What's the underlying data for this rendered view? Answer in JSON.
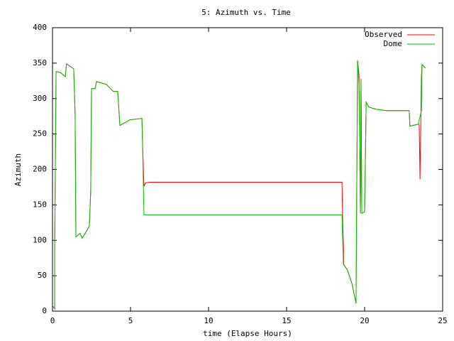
{
  "chart_data": {
    "type": "line",
    "title": "5: Azimuth vs. Time",
    "x_label": "time (Elapse Hours)",
    "y_label": "Azimuth",
    "xlim": [
      0,
      25
    ],
    "xticks": [
      0,
      5,
      10,
      15,
      20,
      25
    ],
    "ylim": [
      0,
      400
    ],
    "yticks": [
      0,
      50,
      100,
      150,
      200,
      250,
      300,
      350,
      400
    ],
    "grid": false,
    "legend": "top-right",
    "series": [
      {
        "name": "Observed",
        "color": "#ff0000",
        "x": [
          0,
          0.14,
          0.14,
          0.23,
          0.5,
          0.82,
          0.9,
          1.36,
          1.45,
          1.5,
          1.77,
          1.9,
          2.18,
          2.36,
          2.45,
          2.5,
          2.73,
          2.82,
          3.45,
          3.9,
          4.18,
          4.32,
          4.64,
          4.95,
          5.73,
          5.77,
          5.86,
          5.95,
          6.2,
          18.55,
          18.6,
          18.64,
          18.66,
          18.9,
          19.2,
          19.45,
          19.55,
          19.64,
          19.73,
          19.77,
          19.82,
          20,
          20.1,
          20.27,
          20.73,
          21.4,
          22.86,
          22.9,
          23.45,
          23.5,
          23.55,
          23.64,
          23.68,
          23.9
        ],
        "values": [
          8,
          3,
          88,
          338,
          337,
          331,
          349,
          342,
          278,
          105,
          110,
          103,
          113,
          120,
          170,
          314,
          314,
          324,
          320,
          310,
          310,
          262,
          266,
          270,
          272,
          238,
          176,
          181,
          182,
          182,
          120,
          95,
          66,
          58,
          38,
          11,
          354,
          333,
          138,
          328,
          138,
          140,
          295,
          288,
          285,
          283,
          283,
          261,
          264,
          262,
          186,
          330,
          348,
          343
        ]
      },
      {
        "name": "Dome",
        "color": "#00c000",
        "x": [
          0,
          0.14,
          0.14,
          0.23,
          0.5,
          0.82,
          0.9,
          1.36,
          1.45,
          1.5,
          1.77,
          1.9,
          2.18,
          2.36,
          2.45,
          2.5,
          2.73,
          2.82,
          3.45,
          3.9,
          4.18,
          4.32,
          4.64,
          4.95,
          5.73,
          5.77,
          5.86,
          18.55,
          18.64,
          18.9,
          19.2,
          19.45,
          19.55,
          19.64,
          19.73,
          19.77,
          19.82,
          20,
          20.1,
          20.27,
          20.73,
          21.4,
          22.86,
          22.9,
          23.45,
          23.5,
          23.64,
          23.68,
          23.9
        ],
        "values": [
          8,
          3,
          88,
          338,
          337,
          331,
          349,
          342,
          278,
          105,
          110,
          103,
          113,
          120,
          170,
          314,
          314,
          324,
          320,
          310,
          310,
          262,
          266,
          270,
          272,
          238,
          136,
          136,
          66,
          58,
          38,
          11,
          354,
          318,
          138,
          328,
          138,
          140,
          295,
          288,
          285,
          283,
          283,
          261,
          264,
          270,
          283,
          348,
          343
        ]
      }
    ]
  }
}
